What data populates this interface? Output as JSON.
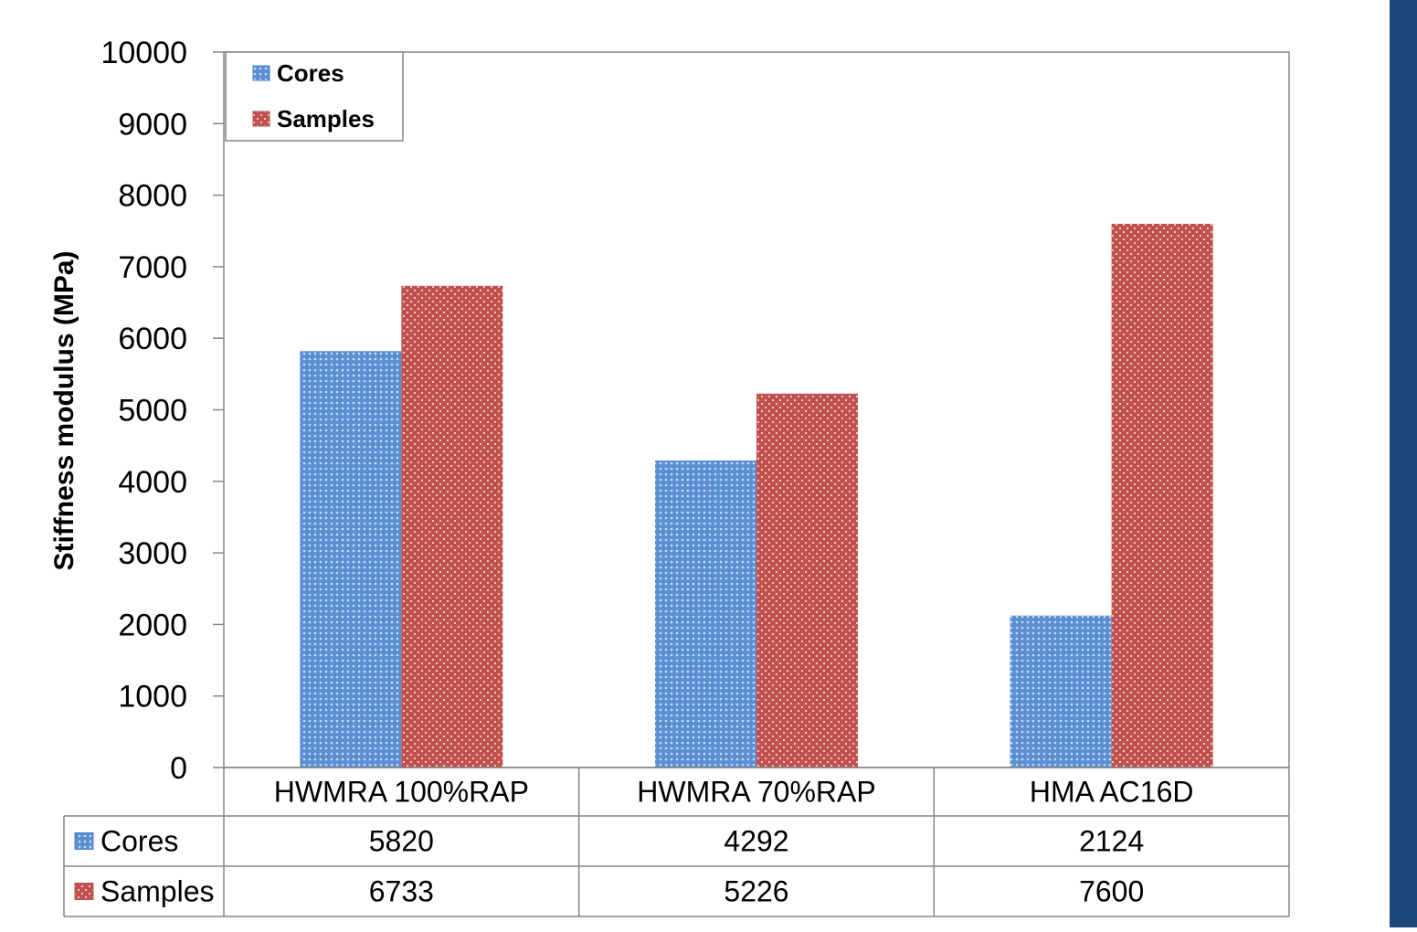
{
  "chart_data": {
    "type": "bar",
    "title": "",
    "xlabel": "",
    "ylabel": "Stiffness modulus (MPa)",
    "ylim": [
      0,
      10000
    ],
    "yticks": [
      0,
      1000,
      2000,
      3000,
      4000,
      5000,
      6000,
      7000,
      8000,
      9000,
      10000
    ],
    "categories": [
      "HWMRA 100%RAP",
      "HWMRA 70%RAP",
      "HMA AC16D"
    ],
    "series": [
      {
        "name": "Cores",
        "values": [
          5820,
          4292,
          2124
        ]
      },
      {
        "name": "Samples",
        "values": [
          6733,
          5226,
          7600
        ]
      }
    ],
    "legend_position": "top-left",
    "grid": false,
    "data_table": true
  },
  "colors": {
    "cores": "#4f81bd",
    "samples": "#c0504d",
    "sidebar": "#1f497d"
  }
}
